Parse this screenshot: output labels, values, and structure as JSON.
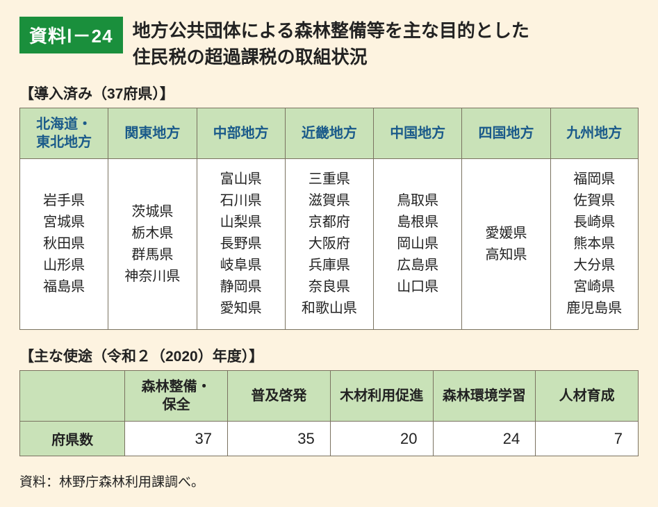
{
  "badge": "資料Ⅰ－24",
  "title_line1": "地方公共団体による森林整備等を主な目的とした",
  "title_line2": "住民税の超過課税の取組状況",
  "section1_label": "【導入済み（37府県）】",
  "table1": {
    "headers": [
      "北海道・\n東北地方",
      "関東地方",
      "中部地方",
      "近畿地方",
      "中国地方",
      "四国地方",
      "九州地方"
    ],
    "columns": [
      [
        "岩手県",
        "宮城県",
        "秋田県",
        "山形県",
        "福島県"
      ],
      [
        "茨城県",
        "栃木県",
        "群馬県",
        "神奈川県"
      ],
      [
        "富山県",
        "石川県",
        "山梨県",
        "長野県",
        "岐阜県",
        "静岡県",
        "愛知県"
      ],
      [
        "三重県",
        "滋賀県",
        "京都府",
        "大阪府",
        "兵庫県",
        "奈良県",
        "和歌山県"
      ],
      [
        "鳥取県",
        "島根県",
        "岡山県",
        "広島県",
        "山口県"
      ],
      [
        "愛媛県",
        "高知県"
      ],
      [
        "福岡県",
        "佐賀県",
        "長崎県",
        "熊本県",
        "大分県",
        "宮崎県",
        "鹿児島県"
      ]
    ],
    "header_bg": "#c9e2b8",
    "header_color": "#1a5a8a",
    "border_color": "#7a7260",
    "cell_bg": "#ffffff",
    "col_widths_pct": [
      14.3,
      14.3,
      14.3,
      14.3,
      14.3,
      14.3,
      14.2
    ]
  },
  "section2_label": "【主な使途（令和２（2020）年度）】",
  "table2": {
    "row_label": "府県数",
    "col_headers": [
      "森林整備・\n保全",
      "普及啓発",
      "木材利用促進",
      "森林環境学習",
      "人材育成"
    ],
    "values": [
      37,
      35,
      20,
      24,
      7
    ],
    "header_bg": "#c9e2b8",
    "border_color": "#7a7260",
    "cell_bg": "#ffffff",
    "first_col_width_pct": 17,
    "data_col_width_pct": 16.6
  },
  "source": "資料：林野庁森林利用課調べ。",
  "page_bg": "#fdf3e0",
  "badge_bg": "#1a8f3c",
  "badge_color": "#ffffff",
  "title_fontsize": 26,
  "label_fontsize": 21,
  "cell_fontsize": 20
}
